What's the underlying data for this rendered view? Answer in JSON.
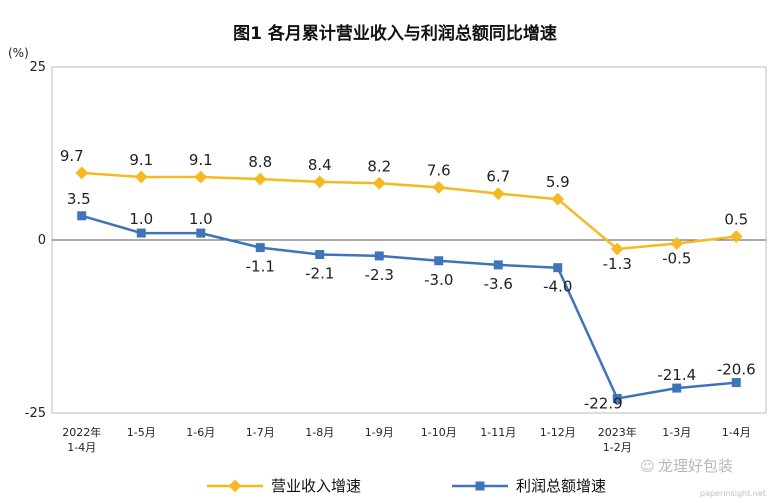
{
  "chart_data": {
    "type": "line",
    "title": "图1  各月累计营业收入与利润总额同比增速",
    "unit_label": "(%)",
    "categories": [
      [
        "2022年",
        "1-4月"
      ],
      [
        "1-5月"
      ],
      [
        "1-6月"
      ],
      [
        "1-7月"
      ],
      [
        "1-8月"
      ],
      [
        "1-9月"
      ],
      [
        "1-10月"
      ],
      [
        "1-11月"
      ],
      [
        "1-12月"
      ],
      [
        "2023年",
        "1-2月"
      ],
      [
        "1-3月"
      ],
      [
        "1-4月"
      ]
    ],
    "ylim": [
      -25,
      25
    ],
    "yticks": [
      25,
      0,
      -25
    ],
    "legend_position": "bottom",
    "series": [
      {
        "name": "营业收入增速",
        "color": "#f5b921",
        "values": [
          9.7,
          9.1,
          9.1,
          8.8,
          8.4,
          8.2,
          7.6,
          6.7,
          5.9,
          -1.3,
          -0.5,
          0.5
        ],
        "labels": [
          "9.7",
          "9.1",
          "9.1",
          "8.8",
          "8.4",
          "8.2",
          "7.6",
          "6.7",
          "5.9",
          "-1.3",
          "-0.5",
          "0.5"
        ]
      },
      {
        "name": "利润总额增速",
        "color": "#3f74b9",
        "values": [
          3.5,
          1.0,
          1.0,
          -1.1,
          -2.1,
          -2.3,
          -3.0,
          -3.6,
          -4.0,
          -22.9,
          -21.4,
          -20.6
        ],
        "labels": [
          "3.5",
          "1.0",
          "1.0",
          "-1.1",
          "-2.1",
          "-2.3",
          "-3.0",
          "-3.6",
          "-4.0",
          "-22.9",
          "-21.4",
          "-20.6"
        ]
      }
    ]
  },
  "watermark": {
    "text": "龙理好包装",
    "sub": "paperinsight.net"
  }
}
